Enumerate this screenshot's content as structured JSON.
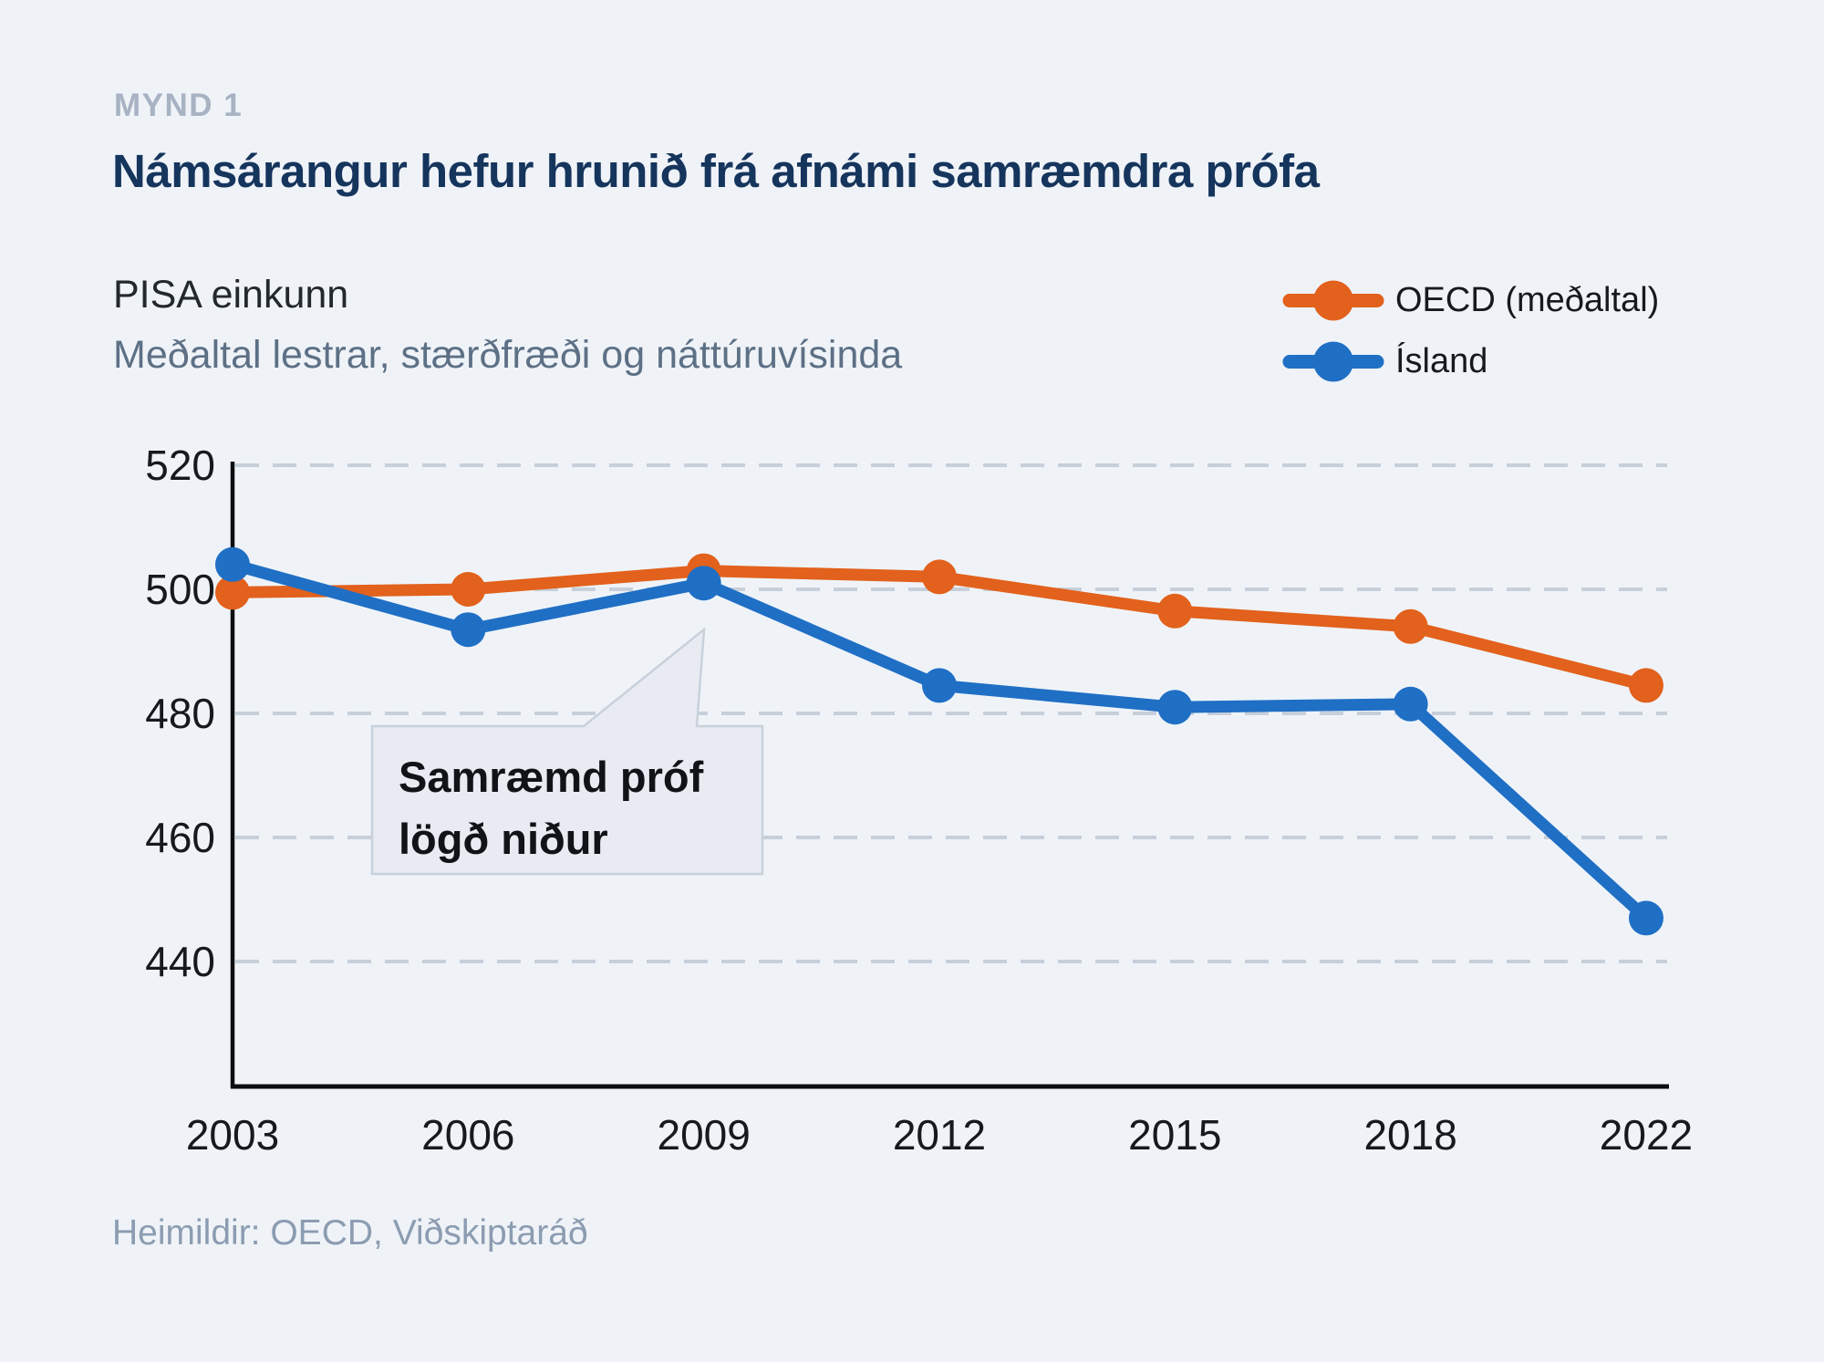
{
  "figure_label": "MYND 1",
  "title": "Námsárangur hefur hrunið frá afnámi samræmdra prófa",
  "subtitle_primary": "PISA einkunn",
  "subtitle_secondary": "Meðaltal lestrar, stærðfræði og náttúruvísinda",
  "source": "Heimildir: OECD, Viðskiptaráð",
  "legend": {
    "position": "top-right",
    "items": [
      {
        "label": "OECD (meðaltal)",
        "color": "#e2611c"
      },
      {
        "label": "Ísland",
        "color": "#1f6fc5"
      }
    ]
  },
  "annotation": {
    "line1": "Samræmd próf",
    "line2": "lögð niður",
    "points_to_year": "2009"
  },
  "colors": {
    "background": "#eff3f8",
    "title_navy": "#16355d",
    "oecd_orange": "#e2611c",
    "iceland_blue": "#1f6fc5",
    "gridline": "#c6cfda",
    "callout_fill": "#e8ecf2",
    "callout_border": "#c8d1db",
    "source_gray": "#8c9cb1"
  },
  "chart_data": {
    "type": "line",
    "title": "Námsárangur hefur hrunið frá afnámi samræmdra prófa",
    "xlabel": "",
    "ylabel": "PISA einkunn",
    "categories": [
      "2003",
      "2006",
      "2009",
      "2012",
      "2015",
      "2018",
      "2022"
    ],
    "y_ticks": [
      520,
      500,
      480,
      460,
      440
    ],
    "ylim": [
      420,
      521
    ],
    "grid": "dashed-horizontal",
    "legend_position": "top-right",
    "series": [
      {
        "name": "OECD (meðaltal)",
        "color": "#e2611c",
        "values": [
          499.5,
          500,
          503,
          502,
          496.5,
          494,
          484.5
        ]
      },
      {
        "name": "Ísland",
        "color": "#1f6fc5",
        "values": [
          504,
          493.5,
          501,
          484.5,
          481,
          481.5,
          447
        ]
      }
    ]
  }
}
